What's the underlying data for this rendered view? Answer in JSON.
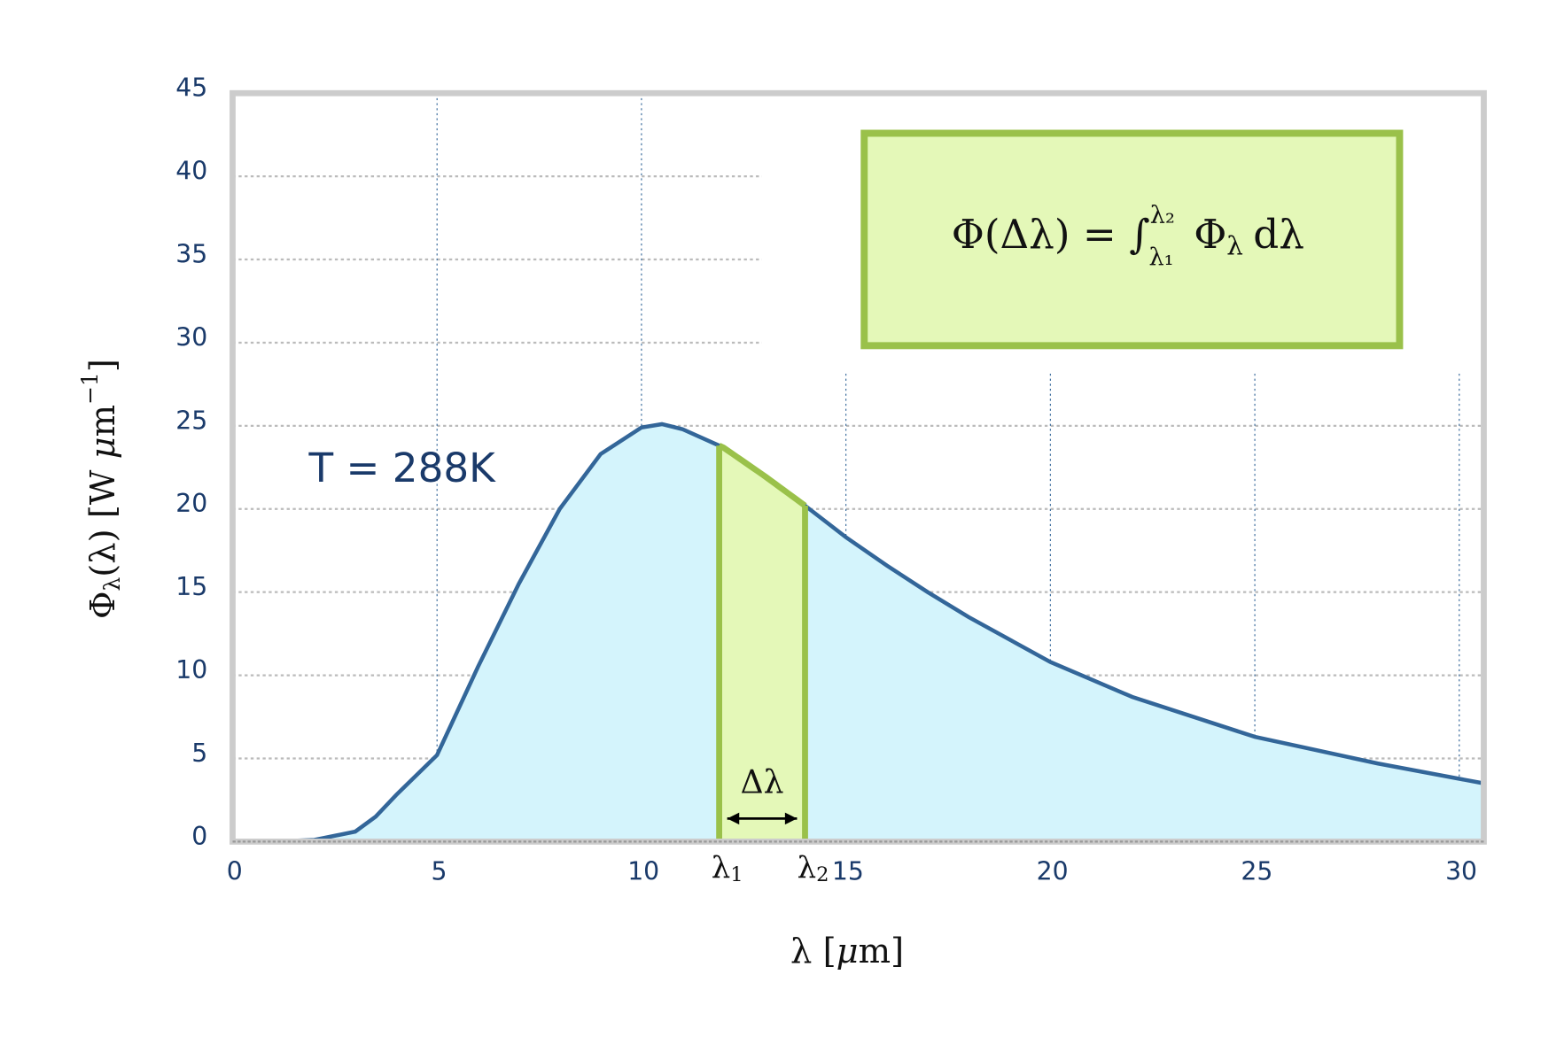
{
  "chart_data": {
    "type": "area",
    "x": [
      0,
      1,
      2,
      3,
      3.5,
      4,
      5,
      6,
      7,
      8,
      9,
      10,
      10.5,
      11,
      12,
      13,
      14,
      15,
      16,
      17,
      18,
      20,
      22,
      25,
      28,
      30.6
    ],
    "values": [
      0,
      0,
      0.1,
      0.6,
      1.5,
      2.8,
      5.2,
      10.5,
      15.5,
      20,
      23.3,
      24.9,
      25.1,
      24.8,
      23.7,
      22,
      20.2,
      18.3,
      16.6,
      15,
      13.5,
      10.8,
      8.7,
      6.3,
      4.7,
      3.5
    ],
    "color": "#336699",
    "fill": "#d4f4fc",
    "xlim": [
      0,
      30.6
    ],
    "ylim": [
      0,
      45
    ],
    "xticks": [
      0,
      5,
      10,
      15,
      20,
      25,
      30
    ],
    "yticks": [
      0,
      5,
      10,
      15,
      20,
      25,
      30,
      35,
      40,
      45
    ],
    "grid": true,
    "xlabel": [
      "λ",
      " [",
      "μ",
      "m]"
    ],
    "ylabel": [
      "Φ",
      "λ",
      "(λ)  [W ",
      "μ",
      "m",
      "−1",
      "]"
    ],
    "annotation": "T = 288K",
    "band": {
      "x1": 11.9,
      "x2": 14.0,
      "label1": [
        "λ",
        "1"
      ],
      "label2": [
        "λ",
        "2"
      ],
      "delta": "Δλ",
      "color": "#9ac14a",
      "fill": "#e4f8b8"
    },
    "equation": {
      "lhs": "Φ(Δλ) = ∫",
      "upper": "λ₂",
      "lower": "λ₁",
      "rhs": "Φ",
      "rhs_sub": "λ",
      "tail": "dλ"
    }
  }
}
